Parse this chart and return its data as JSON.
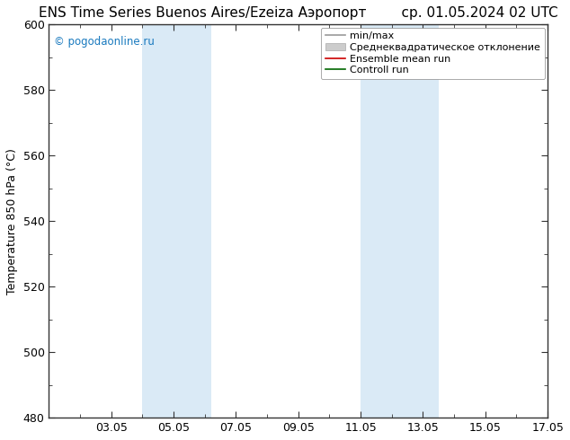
{
  "title_left": "ENS Time Series Buenos Aires/Ezeiza Аэропорт",
  "title_right": "ср. 01.05.2024 02 UTC",
  "ylabel": "Temperature 850 hPa (°C)",
  "ylim": [
    480,
    600
  ],
  "yticks": [
    480,
    500,
    520,
    540,
    560,
    580,
    600
  ],
  "xtick_labels": [
    "03.05",
    "05.05",
    "07.05",
    "09.05",
    "11.05",
    "13.05",
    "15.05",
    "17.05"
  ],
  "xtick_positions": [
    2,
    4,
    6,
    8,
    10,
    12,
    14,
    16
  ],
  "xlim": [
    0,
    16
  ],
  "shaded_bands": [
    {
      "xstart": 3.0,
      "xend": 5.2
    },
    {
      "xstart": 10.0,
      "xend": 12.5
    }
  ],
  "band_color": "#daeaf6",
  "watermark": "© pogodaonline.ru",
  "watermark_color": "#1a7abf",
  "legend_labels": [
    "min/max",
    "Среднеквадратическое отклонение",
    "Ensemble mean run",
    "Controll run"
  ],
  "legend_line_colors": [
    "#999999",
    "#cccccc",
    "#cc0000",
    "#006600"
  ],
  "background_color": "#ffffff",
  "spine_color": "#333333",
  "tick_color": "#333333",
  "axis_label_fontsize": 9,
  "title_fontsize": 11,
  "tick_fontsize": 9,
  "legend_fontsize": 8
}
